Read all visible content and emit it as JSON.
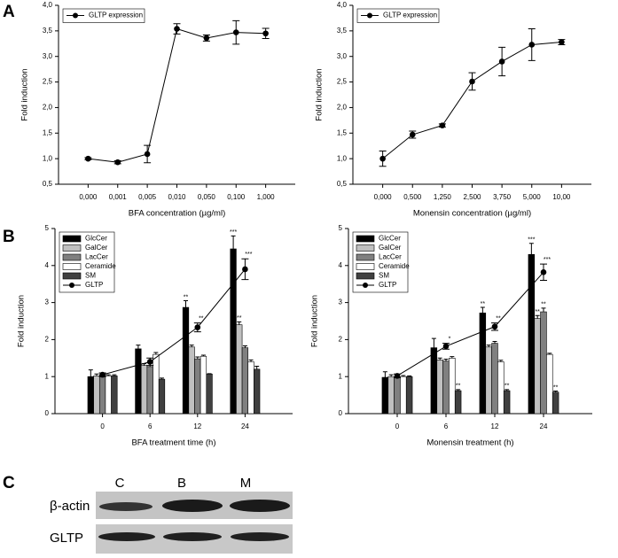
{
  "chart_data": [
    {
      "type": "line",
      "xlabel": "BFA concentration (µg/ml)",
      "ylabel": "Fold induction",
      "categories": [
        "0,000",
        "0,001",
        "0,005",
        "0,010",
        "0,050",
        "0,100",
        "1,000"
      ],
      "series": [
        {
          "name": "GLTP expression",
          "color": "#000000",
          "values": [
            1.0,
            0.93,
            1.09,
            3.54,
            3.36,
            3.47,
            3.45
          ],
          "errors": [
            0.02,
            0.03,
            0.17,
            0.1,
            0.06,
            0.23,
            0.1
          ]
        }
      ],
      "ylim": [
        0.5,
        4.0
      ],
      "yticks": [
        {
          "value": 0.5,
          "label": "0,5"
        },
        {
          "value": 1.0,
          "label": "1,0"
        },
        {
          "value": 1.5,
          "label": "1,5"
        },
        {
          "value": 2.0,
          "label": "2,0"
        },
        {
          "value": 2.5,
          "label": "2,5"
        },
        {
          "value": 3.0,
          "label": "3,0"
        },
        {
          "value": 3.5,
          "label": "3,5"
        },
        {
          "value": 4.0,
          "label": "4,0"
        }
      ],
      "legend": "upper left"
    },
    {
      "type": "line",
      "xlabel": "Monensin concentration (µg/ml)",
      "ylabel": "Fold induction",
      "categories": [
        "0,000",
        "0,500",
        "1,250",
        "2,500",
        "3,750",
        "5,000",
        "10,00"
      ],
      "series": [
        {
          "name": "GLTP expression",
          "color": "#000000",
          "values": [
            1.0,
            1.47,
            1.65,
            2.51,
            2.9,
            3.23,
            3.28
          ],
          "errors": [
            0.15,
            0.07,
            0.03,
            0.17,
            0.28,
            0.31,
            0.05
          ]
        }
      ],
      "ylim": [
        0.5,
        4.0
      ],
      "yticks": [
        {
          "value": 0.5,
          "label": "0,5"
        },
        {
          "value": 1.0,
          "label": "1,0"
        },
        {
          "value": 1.5,
          "label": "1,5"
        },
        {
          "value": 2.0,
          "label": "2,0"
        },
        {
          "value": 2.5,
          "label": "2,5"
        },
        {
          "value": 3.0,
          "label": "3,0"
        },
        {
          "value": 3.5,
          "label": "3,5"
        },
        {
          "value": 4.0,
          "label": "4,0"
        }
      ],
      "legend": "upper left"
    },
    {
      "type": "bar",
      "xlabel": "BFA treatment time (h)",
      "ylabel": "Fold induction",
      "categories": [
        "0",
        "6",
        "12",
        "24"
      ],
      "series": [
        {
          "name": "GlcCer",
          "color": "#000000",
          "values": [
            1.0,
            1.75,
            2.87,
            4.45
          ],
          "errors": [
            0.18,
            0.1,
            0.18,
            0.35
          ],
          "significance": [
            null,
            null,
            "**",
            "***"
          ]
        },
        {
          "name": "GalCer",
          "color": "#c0c0c0",
          "values": [
            1.02,
            1.3,
            1.8,
            2.4
          ],
          "errors": [
            0.05,
            0.05,
            0.05,
            0.08
          ],
          "significance": [
            null,
            null,
            null,
            "**"
          ]
        },
        {
          "name": "LacCer",
          "color": "#808080",
          "values": [
            1.05,
            1.27,
            1.48,
            1.78
          ],
          "errors": [
            0.05,
            0.1,
            0.05,
            0.05
          ]
        },
        {
          "name": "Ceramide",
          "color": "#ffffff",
          "values": [
            1.02,
            1.6,
            1.55,
            1.4
          ],
          "errors": [
            0.03,
            0.05,
            0.03,
            0.05
          ]
        },
        {
          "name": "SM",
          "color": "#404040",
          "values": [
            1.02,
            0.93,
            1.07,
            1.2
          ],
          "errors": [
            0.03,
            0.03,
            0.01,
            0.08
          ]
        },
        {
          "name": "GLTP",
          "type": "line",
          "color": "#000000",
          "values": [
            1.05,
            1.4,
            2.33,
            3.9
          ],
          "errors": [
            0.05,
            0.1,
            0.12,
            0.28
          ],
          "significance": [
            null,
            null,
            "**",
            "***"
          ]
        }
      ],
      "ylim": [
        0,
        5
      ],
      "yticks": [
        0,
        1,
        2,
        3,
        4,
        5
      ],
      "legend": "upper left"
    },
    {
      "type": "bar",
      "xlabel": "Monensin treatment (h)",
      "ylabel": "Fold induction",
      "categories": [
        "0",
        "6",
        "12",
        "24"
      ],
      "series": [
        {
          "name": "GlcCer",
          "color": "#000000",
          "values": [
            0.98,
            1.78,
            2.72,
            4.3
          ],
          "errors": [
            0.15,
            0.25,
            0.15,
            0.3
          ],
          "significance": [
            null,
            null,
            "**",
            "***"
          ]
        },
        {
          "name": "GalCer",
          "color": "#c0c0c0",
          "values": [
            1.0,
            1.45,
            1.8,
            2.57
          ],
          "errors": [
            0.05,
            0.05,
            0.05,
            0.08
          ],
          "significance": [
            null,
            null,
            null,
            "**"
          ]
        },
        {
          "name": "LacCer",
          "color": "#808080",
          "values": [
            1.0,
            1.42,
            1.9,
            2.75
          ],
          "errors": [
            0.05,
            0.05,
            0.05,
            0.1
          ],
          "significance": [
            null,
            null,
            null,
            "**"
          ]
        },
        {
          "name": "Ceramide",
          "color": "#ffffff",
          "values": [
            1.0,
            1.5,
            1.4,
            1.6
          ],
          "errors": [
            0.03,
            0.04,
            0.04,
            0.03
          ]
        },
        {
          "name": "SM",
          "color": "#404040",
          "values": [
            1.0,
            0.62,
            0.62,
            0.58
          ],
          "errors": [
            0.02,
            0.03,
            0.03,
            0.03
          ],
          "significance": [
            null,
            "**",
            "**",
            "**"
          ]
        },
        {
          "name": "GLTP",
          "type": "line",
          "color": "#000000",
          "values": [
            1.02,
            1.82,
            2.35,
            3.82
          ],
          "errors": [
            0.05,
            0.08,
            0.1,
            0.22
          ],
          "significance": [
            null,
            "*",
            "**",
            "***"
          ]
        }
      ],
      "ylim": [
        0,
        5
      ],
      "yticks": [
        0,
        1,
        2,
        3,
        4,
        5
      ],
      "legend": "upper left"
    }
  ],
  "panels": [
    "A",
    "B",
    "C"
  ],
  "blot": {
    "lanes": [
      "C",
      "B",
      "M"
    ],
    "rows": [
      "β-actin",
      "GLTP"
    ]
  }
}
